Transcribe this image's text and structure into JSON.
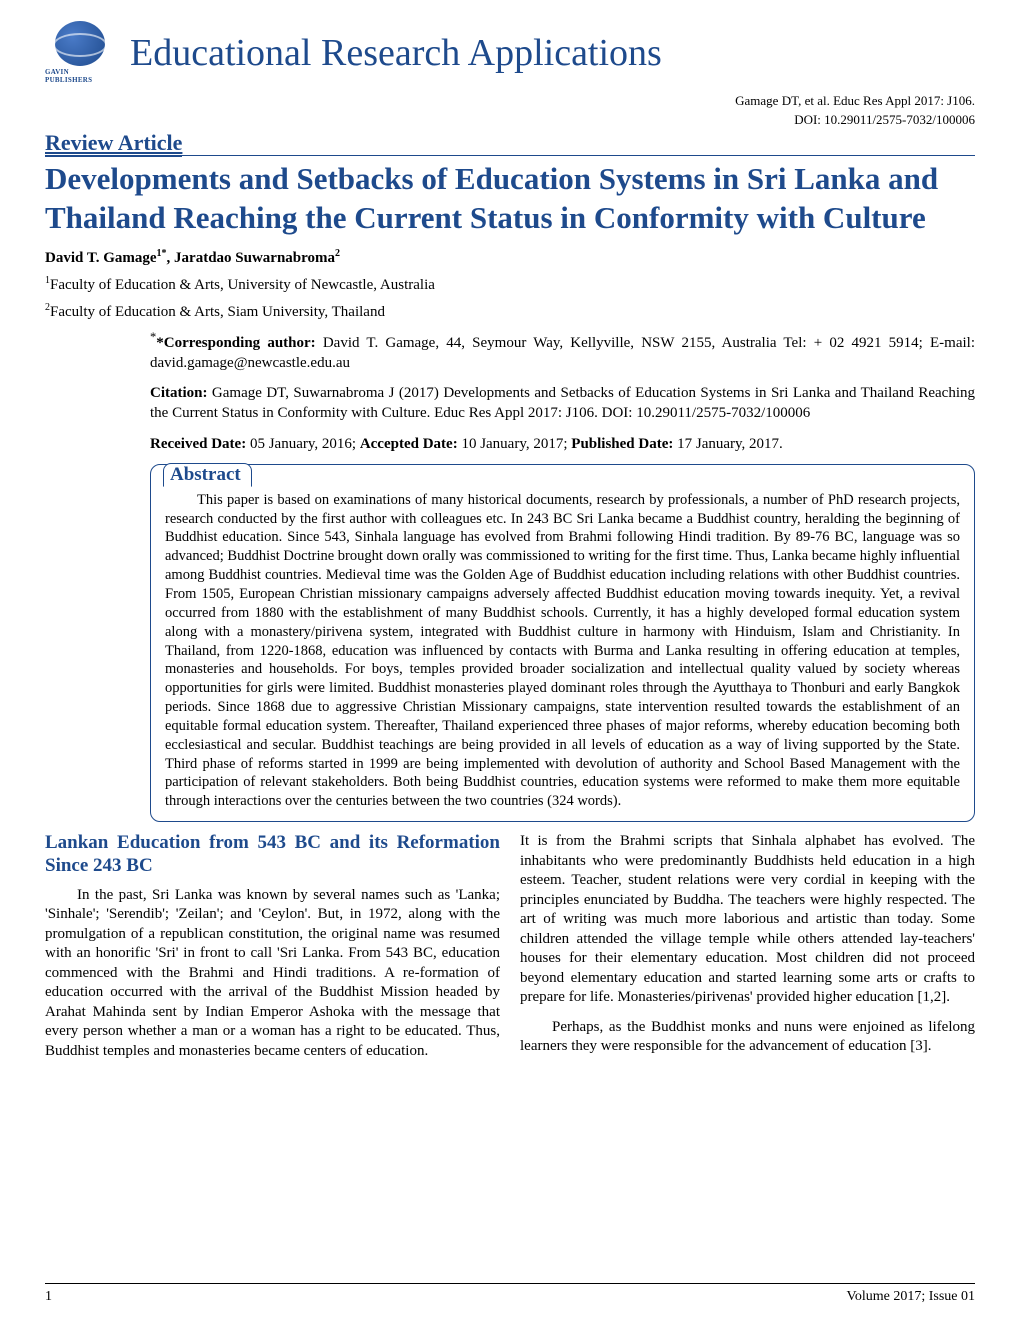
{
  "logo": {
    "publisher_text": "GAVIN PUBLISHERS"
  },
  "journal_title": "Educational Research Applications",
  "citation_header": "Gamage DT, et al. Educ Res Appl 2017: J106.",
  "doi": "DOI: 10.29011/2575-7032/100006",
  "article_type": "Review Article",
  "article_title": "Developments and Setbacks of Education Systems in Sri Lanka and Thailand Reaching the Current Status in Conformity with Culture",
  "authors_html": "David T. Gamage<sup>1*</sup>, Jaratdao Suwarnabroma<sup>2</sup>",
  "affiliations": [
    {
      "sup": "1",
      "text": "Faculty of Education & Arts, University of Newcastle, Australia"
    },
    {
      "sup": "2",
      "text": "Faculty of Education & Arts, Siam University, Thailand"
    }
  ],
  "corresponding": {
    "label": "*Corresponding author:",
    "text": " David T. Gamage, 44, Seymour Way, Kellyville, NSW 2155, Australia Tel: + 02 4921 5914; E-mail: david.gamage@newcastle.edu.au"
  },
  "citation": {
    "label": "Citation:",
    "text": " Gamage DT, Suwarnabroma J (2017) Developments and Setbacks of Education Systems in Sri Lanka and Thailand Reaching the Current Status in Conformity with Culture. Educ Res Appl 2017: J106. DOI: 10.29011/2575-7032/100006"
  },
  "dates": {
    "received_label": "Received Date:",
    "received": " 05 January, 2016; ",
    "accepted_label": "Accepted Date:",
    "accepted": " 10 January, 2017; ",
    "published_label": "Published Date:",
    "published": " 17 January, 2017."
  },
  "abstract": {
    "heading": "Abstract",
    "text": "This paper is based on examinations of many historical documents, research by professionals, a number of PhD research projects, research conducted by the first author with colleagues etc. In 243 BC Sri Lanka became a Buddhist country, heralding the beginning of Buddhist education. Since 543, Sinhala language has evolved from Brahmi following Hindi tradition. By 89-76 BC, language was so advanced; Buddhist Doctrine brought down orally was commissioned to writing for the first time. Thus, Lanka became highly influential among Buddhist countries. Medieval time was the Golden Age of Buddhist education including relations with other Buddhist countries. From 1505, European Christian missionary campaigns adversely affected Buddhist education moving towards inequity. Yet, a revival occurred from 1880 with the establishment of many Buddhist schools. Currently, it has a highly developed formal education system along with a monastery/pirivena system, integrated with Buddhist culture in harmony with Hinduism, Islam and Christianity. In Thailand, from 1220-1868, education was influenced by contacts with Burma and Lanka resulting in offering education at temples, monasteries and households. For boys, temples provided broader socialization and intellectual quality valued by society whereas opportunities for girls were limited. Buddhist monasteries played dominant roles through the Ayutthaya to Thonburi and early Bangkok periods. Since 1868 due to aggressive Christian Missionary campaigns, state intervention resulted towards the establishment of an equitable formal education system. Thereafter, Thailand experienced three phases of major reforms, whereby education becoming both ecclesiastical and secular. Buddhist teachings are being provided in all levels of education as a way of living supported by the State. Third phase of reforms started in 1999 are being implemented with devolution of authority and School Based Management with the participation of relevant stakeholders. Both being Buddhist countries, education systems were reformed to make them more equitable through interactions over the centuries between the two countries (324 words)."
  },
  "section": {
    "heading": "Lankan Education from 543 BC and its Reformation Since 243 BC",
    "p1": "In the past, Sri Lanka was known by several names such as 'Lanka; 'Sinhale'; 'Serendib'; 'Zeilan'; and 'Ceylon'. But, in 1972, along with the promulgation of a republican constitution, the original name was resumed with an honorific 'Sri' in front to call 'Sri Lanka. From 543 BC, education commenced with the Brahmi and Hindi traditions. A re-formation of education occurred with the arrival of the Buddhist Mission headed by Arahat Mahinda sent by Indian Emperor Ashoka with the message that every person whether a man or a woman has a right to be educated. Thus, Buddhist temples and monasteries became centers of education.",
    "p2": "It is from the Brahmi scripts that Sinhala alphabet has evolved. The inhabitants who were predominantly Buddhists held education in a high esteem. Teacher, student relations were very cordial in keeping with the principles enunciated by Buddha. The teachers were highly respected. The art of writing was much more laborious and artistic than today. Some children attended the village temple while others attended lay-teachers' houses for their elementary education. Most children did not proceed beyond elementary education and started learning some arts or crafts to prepare for life. Monasteries/pirivenas' provided higher education [1,2].",
    "p3": "Perhaps, as the Buddhist monks and nuns were enjoined as lifelong learners they were responsible for the advancement of education [3]."
  },
  "footer": {
    "page": "1",
    "issue": "Volume 2017; Issue 01"
  },
  "colors": {
    "primary": "#1e4a8c",
    "text": "#000000",
    "background": "#ffffff"
  }
}
